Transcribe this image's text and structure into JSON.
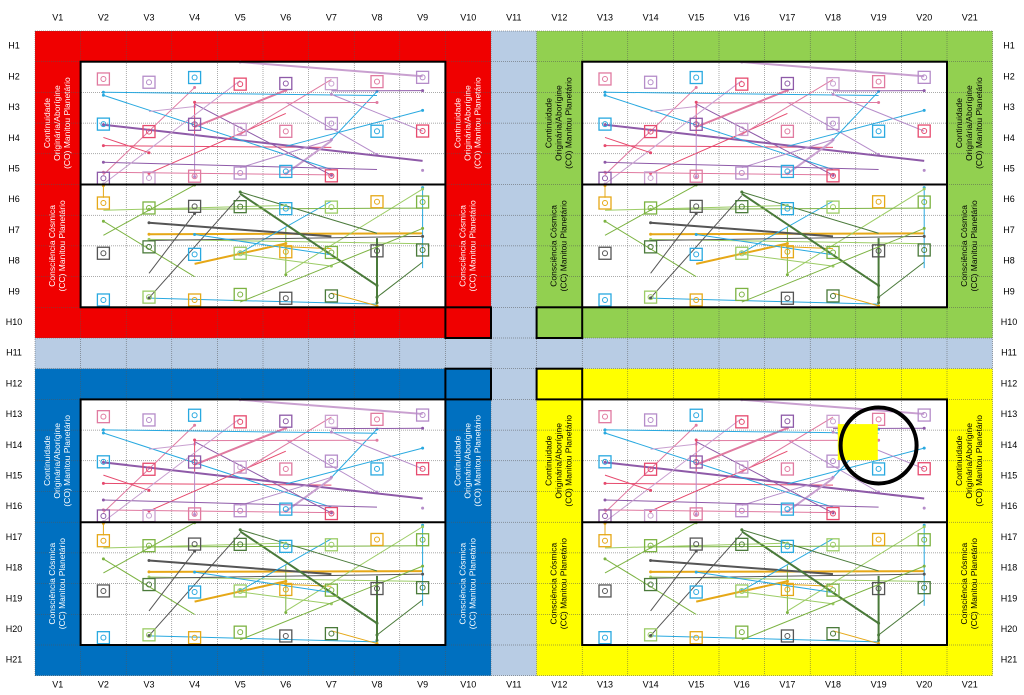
{
  "columns": [
    "V1",
    "V2",
    "V3",
    "V4",
    "V5",
    "V6",
    "V7",
    "V8",
    "V9",
    "V10",
    "V11",
    "V12",
    "V13",
    "V14",
    "V15",
    "V16",
    "V17",
    "V18",
    "V19",
    "V20",
    "V21"
  ],
  "rows": [
    "H1",
    "H2",
    "H3",
    "H4",
    "H5",
    "H6",
    "H7",
    "H8",
    "H9",
    "H10",
    "H11",
    "H12",
    "H13",
    "H14",
    "H15",
    "H16",
    "H17",
    "H18",
    "H19",
    "H20",
    "H21"
  ],
  "labels": {
    "co": [
      "Continuidade",
      "Originária/Aborígine",
      "(CO) Manitou Planetário"
    ],
    "cc": [
      "Consciência Cósmica",
      "(CC) Manitou Planetário"
    ]
  }
}
